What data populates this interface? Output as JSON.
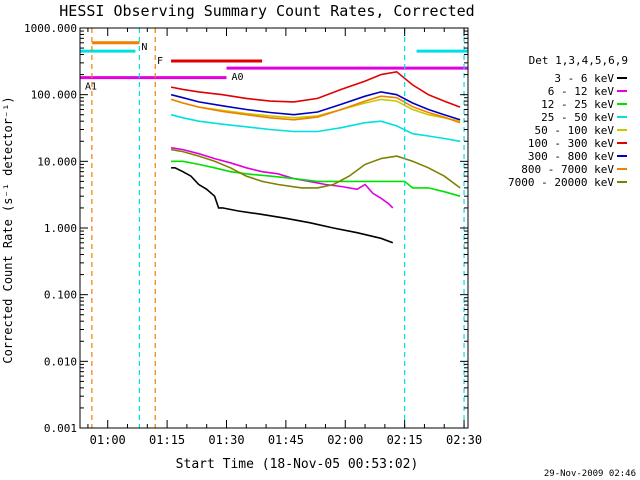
{
  "chart_data": {
    "type": "line",
    "title": "HESSI Observing Summary Count Rates, Corrected",
    "xlabel": "Start Time (18-Nov-05 00:53:02)",
    "ylabel": "Corrected Count Rate (s⁻¹ detector⁻¹)",
    "footer": "29-Nov-2009 02:46",
    "y_scale": "log",
    "ylim": [
      0.001,
      1000
    ],
    "xlim_minutes_after_start": [
      0,
      98
    ],
    "x_ticks": [
      {
        "label": "01:00",
        "minute": 7
      },
      {
        "label": "01:15",
        "minute": 22
      },
      {
        "label": "01:30",
        "minute": 37
      },
      {
        "label": "01:45",
        "minute": 52
      },
      {
        "label": "02:00",
        "minute": 67
      },
      {
        "label": "02:15",
        "minute": 82
      },
      {
        "label": "02:30",
        "minute": 97
      }
    ],
    "y_ticks": [
      "1000.000",
      "100.000",
      "10.000",
      "1.000",
      "0.100",
      "0.010",
      "0.001"
    ],
    "legend": {
      "title": "Det 1,3,4,5,6,9",
      "placement": "right",
      "entries": [
        {
          "label": "3 - 6 keV",
          "color": "#000000"
        },
        {
          "label": "6 - 12 keV",
          "color": "#e000e0"
        },
        {
          "label": "12 - 25 keV",
          "color": "#00e000"
        },
        {
          "label": "25 - 50 keV",
          "color": "#00e0e0"
        },
        {
          "label": "50 - 100 keV",
          "color": "#c8c800"
        },
        {
          "label": "100 - 300 keV",
          "color": "#e00000"
        },
        {
          "label": "300 - 800 keV",
          "color": "#0000c0"
        },
        {
          "label": "800 - 7000 keV",
          "color": "#f08000"
        },
        {
          "label": "7000 - 20000 keV",
          "color": "#808000"
        }
      ]
    },
    "series": [
      {
        "name": "3 - 6 keV",
        "x": [
          23,
          24,
          26,
          28,
          30,
          32,
          34,
          35,
          36,
          40,
          46,
          52,
          58,
          64,
          70,
          76,
          79
        ],
        "y": [
          8,
          8,
          7,
          6,
          4.5,
          3.8,
          3,
          2,
          2,
          1.8,
          1.6,
          1.4,
          1.2,
          1.0,
          0.85,
          0.7,
          0.6
        ]
      },
      {
        "name": "6 - 12 keV",
        "x": [
          23,
          26,
          30,
          34,
          38,
          42,
          46,
          50,
          54,
          58,
          62,
          66,
          70,
          72,
          74,
          76,
          78,
          79
        ],
        "y": [
          16,
          15,
          13,
          11,
          9.5,
          8,
          7,
          6.5,
          5.5,
          5,
          4.5,
          4.2,
          3.8,
          4.5,
          3.3,
          2.8,
          2.3,
          2
        ]
      },
      {
        "name": "12 - 25 keV",
        "x": [
          23,
          26,
          30,
          34,
          38,
          42,
          48,
          54,
          60,
          66,
          72,
          76,
          79,
          82,
          84,
          86,
          88,
          92,
          96
        ],
        "y": [
          10,
          10,
          9,
          8,
          7,
          6.5,
          6,
          5.5,
          5,
          5,
          5,
          5,
          5,
          5,
          4,
          4,
          4,
          3.5,
          3
        ]
      },
      {
        "name": "25 - 50 keV",
        "x": [
          23,
          26,
          30,
          36,
          42,
          48,
          54,
          60,
          66,
          72,
          76,
          80,
          84,
          88,
          92,
          96
        ],
        "y": [
          50,
          45,
          40,
          36,
          33,
          30,
          28,
          28,
          32,
          38,
          40,
          34,
          26,
          24,
          22,
          20
        ]
      },
      {
        "name": "50 - 100 keV",
        "x": [
          23,
          26,
          30,
          36,
          42,
          48,
          54,
          60,
          66,
          72,
          76,
          80,
          84,
          88,
          92,
          96
        ],
        "y": [
          85,
          75,
          65,
          58,
          52,
          48,
          45,
          48,
          60,
          75,
          85,
          80,
          60,
          50,
          45,
          40
        ]
      },
      {
        "name": "100 - 300 keV",
        "x": [
          23,
          26,
          30,
          36,
          42,
          48,
          54,
          60,
          66,
          72,
          76,
          80,
          84,
          88,
          92,
          96
        ],
        "y": [
          130,
          120,
          110,
          100,
          88,
          80,
          78,
          88,
          120,
          160,
          200,
          220,
          140,
          100,
          80,
          65
        ]
      },
      {
        "name": "300 - 800 keV",
        "x": [
          23,
          26,
          30,
          36,
          42,
          48,
          54,
          60,
          66,
          72,
          76,
          80,
          84,
          88,
          92,
          96
        ],
        "y": [
          100,
          90,
          78,
          68,
          60,
          54,
          50,
          55,
          72,
          95,
          110,
          100,
          75,
          60,
          50,
          42
        ]
      },
      {
        "name": "800 - 7000 keV",
        "x": [
          23,
          26,
          30,
          36,
          42,
          48,
          54,
          60,
          66,
          72,
          76,
          80,
          84,
          88,
          92,
          96
        ],
        "y": [
          85,
          75,
          65,
          56,
          50,
          45,
          42,
          46,
          60,
          80,
          95,
          90,
          66,
          54,
          46,
          38
        ]
      },
      {
        "name": "7000 - 20000 keV",
        "x": [
          23,
          26,
          30,
          34,
          38,
          42,
          46,
          50,
          56,
          60,
          64,
          68,
          72,
          76,
          80,
          84,
          88,
          92,
          96
        ],
        "y": [
          15,
          14,
          12,
          10,
          8,
          6,
          5,
          4.5,
          4,
          4,
          4.5,
          6,
          9,
          11,
          12,
          10,
          8,
          6,
          4
        ]
      }
    ],
    "attenuator_bars": [
      {
        "label": "",
        "x": [
          3,
          15
        ],
        "y": 600,
        "color": "#f08000"
      },
      {
        "label": "",
        "x": [
          0,
          14
        ],
        "y": 450,
        "color": "#00e0e0"
      },
      {
        "label": "",
        "x": [
          85,
          98
        ],
        "y": 450,
        "color": "#00e0e0"
      },
      {
        "label": "F",
        "x": [
          23,
          46
        ],
        "y": 320,
        "color": "#e00000"
      },
      {
        "label": "A0",
        "x": [
          37,
          98
        ],
        "y": 250,
        "color": "#e000e0"
      },
      {
        "label": "A1",
        "x": [
          0,
          37
        ],
        "y": 180,
        "color": "#e000e0"
      }
    ],
    "markers": [
      {
        "label": "N",
        "x": 15,
        "color": "#00e0e0"
      },
      {
        "label": "",
        "x": 3,
        "color": "#f08000"
      },
      {
        "label": "",
        "x": 19,
        "color": "#f08000"
      },
      {
        "label": "",
        "x": 82,
        "color": "#00e0e0"
      },
      {
        "label": "",
        "x": 97,
        "color": "#00e0e0"
      }
    ]
  }
}
